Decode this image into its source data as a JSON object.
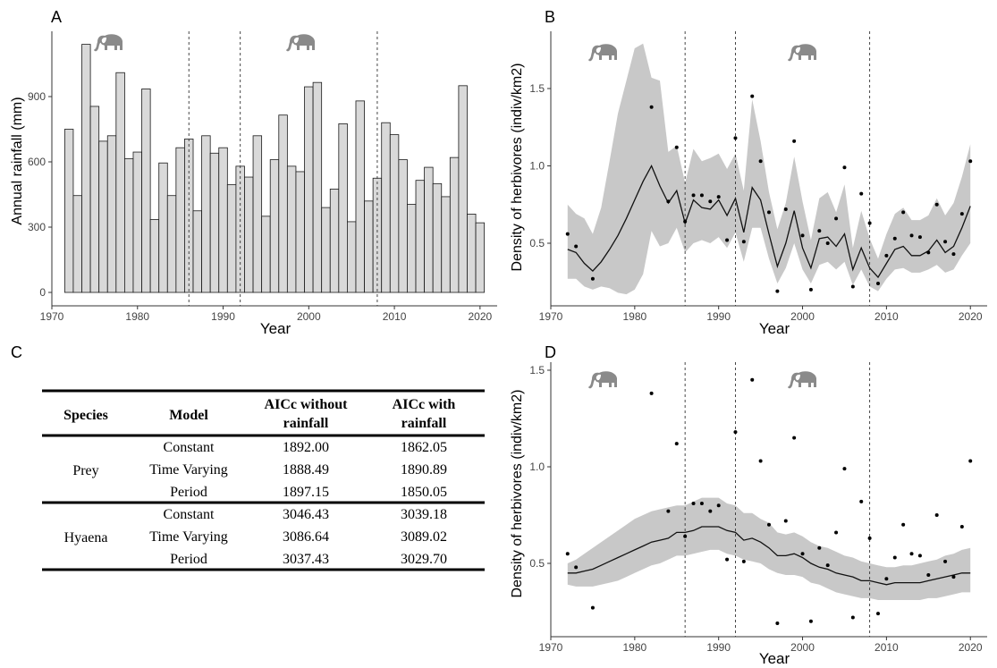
{
  "colors": {
    "bar_fill": "#d9d9d9",
    "bar_stroke": "#1a1a1a",
    "ribbon": "#c8c8c8",
    "line": "#111111",
    "axis": "#333333",
    "elephant": "#8a8a8a"
  },
  "icons": [
    "elephant-icon"
  ],
  "period_breaks": [
    1986,
    1992,
    2008
  ],
  "chart_data": [
    {
      "panel": "A",
      "type": "bar",
      "xlabel": "Year",
      "ylabel": "Annual rainfall (mm)",
      "xlim": [
        1970,
        2022
      ],
      "ylim": [
        0,
        1150
      ],
      "xticks": [
        1970,
        1980,
        1990,
        2000,
        2010,
        2020
      ],
      "yticks": [
        0,
        300,
        600,
        900
      ],
      "grid": false,
      "x": [
        1972,
        1973,
        1974,
        1975,
        1976,
        1977,
        1978,
        1979,
        1980,
        1981,
        1982,
        1983,
        1984,
        1985,
        1986,
        1987,
        1988,
        1989,
        1990,
        1991,
        1992,
        1993,
        1994,
        1995,
        1996,
        1997,
        1998,
        1999,
        2000,
        2001,
        2002,
        2003,
        2004,
        2005,
        2006,
        2007,
        2008,
        2009,
        2010,
        2011,
        2012,
        2013,
        2014,
        2015,
        2016,
        2017,
        2018,
        2019,
        2020
      ],
      "values": [
        750,
        445,
        1140,
        855,
        695,
        720,
        1010,
        615,
        645,
        935,
        335,
        595,
        445,
        665,
        705,
        375,
        720,
        640,
        665,
        495,
        580,
        530,
        720,
        350,
        610,
        815,
        580,
        555,
        945,
        965,
        390,
        475,
        775,
        325,
        880,
        420,
        525,
        780,
        725,
        610,
        405,
        515,
        575,
        500,
        440,
        620,
        950,
        360,
        320
      ]
    },
    {
      "panel": "B",
      "type": "line",
      "xlabel": "Year",
      "ylabel": "Density of herbivores (indiv/km2)",
      "xlim": [
        1970,
        2022
      ],
      "ylim": [
        0.14,
        1.85
      ],
      "xticks": [
        1970,
        1980,
        1990,
        2000,
        2010,
        2020
      ],
      "yticks": [
        0.5,
        1.0,
        1.5
      ],
      "ytick_labels": [
        "0.5",
        "1.0",
        "1.5"
      ],
      "grid": false,
      "x": [
        1972,
        1973,
        1974,
        1975,
        1976,
        1977,
        1978,
        1979,
        1980,
        1981,
        1982,
        1983,
        1984,
        1985,
        1986,
        1987,
        1988,
        1989,
        1990,
        1991,
        1992,
        1993,
        1994,
        1995,
        1996,
        1997,
        1998,
        1999,
        2000,
        2001,
        2002,
        2003,
        2004,
        2005,
        2006,
        2007,
        2008,
        2009,
        2010,
        2011,
        2012,
        2013,
        2014,
        2015,
        2016,
        2017,
        2018,
        2019,
        2020
      ],
      "fit": [
        0.46,
        0.44,
        0.37,
        0.32,
        0.38,
        0.46,
        0.55,
        0.66,
        0.78,
        0.9,
        1.0,
        0.87,
        0.76,
        0.84,
        0.63,
        0.78,
        0.73,
        0.72,
        0.78,
        0.68,
        0.79,
        0.57,
        0.86,
        0.78,
        0.56,
        0.35,
        0.5,
        0.71,
        0.47,
        0.34,
        0.53,
        0.54,
        0.48,
        0.56,
        0.33,
        0.47,
        0.34,
        0.28,
        0.37,
        0.46,
        0.48,
        0.42,
        0.42,
        0.45,
        0.52,
        0.44,
        0.48,
        0.6,
        0.74
      ],
      "lower": [
        0.27,
        0.27,
        0.22,
        0.2,
        0.22,
        0.21,
        0.18,
        0.17,
        0.2,
        0.3,
        0.58,
        0.48,
        0.5,
        0.6,
        0.44,
        0.5,
        0.52,
        0.5,
        0.54,
        0.47,
        0.57,
        0.38,
        0.6,
        0.6,
        0.4,
        0.24,
        0.34,
        0.5,
        0.33,
        0.24,
        0.36,
        0.38,
        0.33,
        0.38,
        0.23,
        0.33,
        0.22,
        0.19,
        0.27,
        0.33,
        0.34,
        0.31,
        0.31,
        0.33,
        0.36,
        0.31,
        0.33,
        0.42,
        0.5
      ],
      "upper": [
        0.75,
        0.69,
        0.66,
        0.56,
        0.73,
        1.03,
        1.34,
        1.55,
        1.76,
        1.79,
        1.57,
        1.55,
        1.09,
        1.13,
        0.89,
        1.11,
        1.03,
        1.05,
        1.08,
        0.98,
        1.08,
        0.84,
        1.43,
        1.16,
        0.83,
        0.59,
        0.76,
        1.06,
        0.77,
        0.52,
        0.79,
        0.83,
        0.7,
        0.88,
        0.47,
        0.71,
        0.53,
        0.4,
        0.56,
        0.69,
        0.73,
        0.65,
        0.65,
        0.68,
        0.79,
        0.68,
        0.76,
        0.93,
        1.14
      ],
      "observed": [
        {
          "x": 1972,
          "y": 0.56
        },
        {
          "x": 1973,
          "y": 0.48
        },
        {
          "x": 1975,
          "y": 0.27
        },
        {
          "x": 1982,
          "y": 1.38
        },
        {
          "x": 1984,
          "y": 0.77
        },
        {
          "x": 1985,
          "y": 1.12
        },
        {
          "x": 1986,
          "y": 0.64
        },
        {
          "x": 1987,
          "y": 0.81
        },
        {
          "x": 1988,
          "y": 0.81
        },
        {
          "x": 1989,
          "y": 0.77
        },
        {
          "x": 1990,
          "y": 0.8
        },
        {
          "x": 1991,
          "y": 0.52
        },
        {
          "x": 1992,
          "y": 1.18
        },
        {
          "x": 1993,
          "y": 0.51
        },
        {
          "x": 1994,
          "y": 1.45
        },
        {
          "x": 1995,
          "y": 1.03
        },
        {
          "x": 1996,
          "y": 0.7
        },
        {
          "x": 1997,
          "y": 0.19
        },
        {
          "x": 1998,
          "y": 0.72
        },
        {
          "x": 1999,
          "y": 1.16
        },
        {
          "x": 2000,
          "y": 0.55
        },
        {
          "x": 2001,
          "y": 0.2
        },
        {
          "x": 2002,
          "y": 0.58
        },
        {
          "x": 2003,
          "y": 0.5
        },
        {
          "x": 2004,
          "y": 0.66
        },
        {
          "x": 2005,
          "y": 0.99
        },
        {
          "x": 2006,
          "y": 0.22
        },
        {
          "x": 2007,
          "y": 0.82
        },
        {
          "x": 2008,
          "y": 0.63
        },
        {
          "x": 2009,
          "y": 0.24
        },
        {
          "x": 2010,
          "y": 0.42
        },
        {
          "x": 2011,
          "y": 0.53
        },
        {
          "x": 2012,
          "y": 0.7
        },
        {
          "x": 2013,
          "y": 0.55
        },
        {
          "x": 2014,
          "y": 0.54
        },
        {
          "x": 2015,
          "y": 0.44
        },
        {
          "x": 2016,
          "y": 0.75
        },
        {
          "x": 2017,
          "y": 0.51
        },
        {
          "x": 2018,
          "y": 0.43
        },
        {
          "x": 2019,
          "y": 0.69
        },
        {
          "x": 2020,
          "y": 1.03
        }
      ]
    },
    {
      "panel": "D",
      "type": "line",
      "xlabel": "Year",
      "ylabel": "Density of herbivores (indiv/km2)",
      "xlim": [
        1970,
        2022
      ],
      "ylim": [
        0.13,
        1.52
      ],
      "xticks": [
        1970,
        1980,
        1990,
        2000,
        2010,
        2020
      ],
      "yticks": [
        0.5,
        1.0,
        1.5
      ],
      "ytick_labels": [
        "0.5",
        "1.0",
        "1.5"
      ],
      "grid": false,
      "x": [
        1972,
        1973,
        1974,
        1975,
        1976,
        1977,
        1978,
        1979,
        1980,
        1981,
        1982,
        1983,
        1984,
        1985,
        1986,
        1987,
        1988,
        1989,
        1990,
        1991,
        1992,
        1993,
        1994,
        1995,
        1996,
        1997,
        1998,
        1999,
        2000,
        2001,
        2002,
        2003,
        2004,
        2005,
        2006,
        2007,
        2008,
        2009,
        2010,
        2011,
        2012,
        2013,
        2014,
        2015,
        2016,
        2017,
        2018,
        2019,
        2020
      ],
      "fit": [
        0.45,
        0.45,
        0.46,
        0.47,
        0.49,
        0.51,
        0.53,
        0.55,
        0.57,
        0.59,
        0.61,
        0.62,
        0.63,
        0.66,
        0.66,
        0.67,
        0.69,
        0.69,
        0.69,
        0.67,
        0.66,
        0.62,
        0.63,
        0.61,
        0.58,
        0.54,
        0.54,
        0.55,
        0.53,
        0.5,
        0.48,
        0.47,
        0.45,
        0.44,
        0.43,
        0.41,
        0.41,
        0.4,
        0.39,
        0.4,
        0.4,
        0.4,
        0.4,
        0.41,
        0.42,
        0.43,
        0.44,
        0.45,
        0.45
      ],
      "lower": [
        0.39,
        0.38,
        0.38,
        0.38,
        0.39,
        0.4,
        0.41,
        0.43,
        0.45,
        0.47,
        0.49,
        0.5,
        0.52,
        0.54,
        0.54,
        0.55,
        0.56,
        0.57,
        0.57,
        0.55,
        0.54,
        0.52,
        0.51,
        0.5,
        0.47,
        0.45,
        0.44,
        0.44,
        0.43,
        0.4,
        0.39,
        0.37,
        0.35,
        0.34,
        0.33,
        0.32,
        0.32,
        0.31,
        0.31,
        0.31,
        0.31,
        0.31,
        0.31,
        0.32,
        0.32,
        0.33,
        0.34,
        0.35,
        0.35
      ],
      "upper": [
        0.5,
        0.52,
        0.55,
        0.58,
        0.61,
        0.64,
        0.67,
        0.7,
        0.73,
        0.75,
        0.77,
        0.78,
        0.79,
        0.8,
        0.8,
        0.82,
        0.84,
        0.84,
        0.84,
        0.81,
        0.8,
        0.76,
        0.76,
        0.73,
        0.71,
        0.66,
        0.65,
        0.66,
        0.64,
        0.61,
        0.59,
        0.58,
        0.56,
        0.54,
        0.53,
        0.51,
        0.5,
        0.49,
        0.48,
        0.48,
        0.49,
        0.49,
        0.5,
        0.51,
        0.52,
        0.54,
        0.55,
        0.57,
        0.58
      ],
      "observed": [
        {
          "x": 1972,
          "y": 0.55
        },
        {
          "x": 1973,
          "y": 0.48
        },
        {
          "x": 1975,
          "y": 0.27
        },
        {
          "x": 1982,
          "y": 1.38
        },
        {
          "x": 1984,
          "y": 0.77
        },
        {
          "x": 1985,
          "y": 1.12
        },
        {
          "x": 1986,
          "y": 0.64
        },
        {
          "x": 1987,
          "y": 0.81
        },
        {
          "x": 1988,
          "y": 0.81
        },
        {
          "x": 1989,
          "y": 0.77
        },
        {
          "x": 1990,
          "y": 0.8
        },
        {
          "x": 1991,
          "y": 0.52
        },
        {
          "x": 1992,
          "y": 1.18
        },
        {
          "x": 1993,
          "y": 0.51
        },
        {
          "x": 1994,
          "y": 1.45
        },
        {
          "x": 1995,
          "y": 1.03
        },
        {
          "x": 1996,
          "y": 0.7
        },
        {
          "x": 1997,
          "y": 0.19
        },
        {
          "x": 1998,
          "y": 0.72
        },
        {
          "x": 1999,
          "y": 1.15
        },
        {
          "x": 2000,
          "y": 0.55
        },
        {
          "x": 2001,
          "y": 0.2
        },
        {
          "x": 2002,
          "y": 0.58
        },
        {
          "x": 2003,
          "y": 0.49
        },
        {
          "x": 2004,
          "y": 0.66
        },
        {
          "x": 2005,
          "y": 0.99
        },
        {
          "x": 2006,
          "y": 0.22
        },
        {
          "x": 2007,
          "y": 0.82
        },
        {
          "x": 2008,
          "y": 0.63
        },
        {
          "x": 2009,
          "y": 0.24
        },
        {
          "x": 2010,
          "y": 0.42
        },
        {
          "x": 2011,
          "y": 0.53
        },
        {
          "x": 2012,
          "y": 0.7
        },
        {
          "x": 2013,
          "y": 0.55
        },
        {
          "x": 2014,
          "y": 0.54
        },
        {
          "x": 2015,
          "y": 0.44
        },
        {
          "x": 2016,
          "y": 0.75
        },
        {
          "x": 2017,
          "y": 0.51
        },
        {
          "x": 2018,
          "y": 0.43
        },
        {
          "x": 2019,
          "y": 0.69
        },
        {
          "x": 2020,
          "y": 1.03
        }
      ]
    },
    {
      "panel": "C",
      "type": "table",
      "headers": [
        "Species",
        "Model",
        "AICc without rainfall",
        "AICc with rainfall"
      ],
      "header_lines": [
        [
          "Species"
        ],
        [
          "Model"
        ],
        [
          "AICc without",
          "rainfall"
        ],
        [
          "AICc with",
          "rainfall"
        ]
      ],
      "groups": [
        {
          "species": "Prey",
          "rows": [
            [
              "Constant",
              "1892.00",
              "1862.05"
            ],
            [
              "Time Varying",
              "1888.49",
              "1890.89"
            ],
            [
              "Period",
              "1897.15",
              "1850.05"
            ]
          ]
        },
        {
          "species": "Hyaena",
          "rows": [
            [
              "Constant",
              "3046.43",
              "3039.18"
            ],
            [
              "Time Varying",
              "3086.64",
              "3089.02"
            ],
            [
              "Period",
              "3037.43",
              "3029.70"
            ]
          ]
        }
      ]
    }
  ],
  "panel_labels": [
    "A",
    "B",
    "C",
    "D"
  ]
}
